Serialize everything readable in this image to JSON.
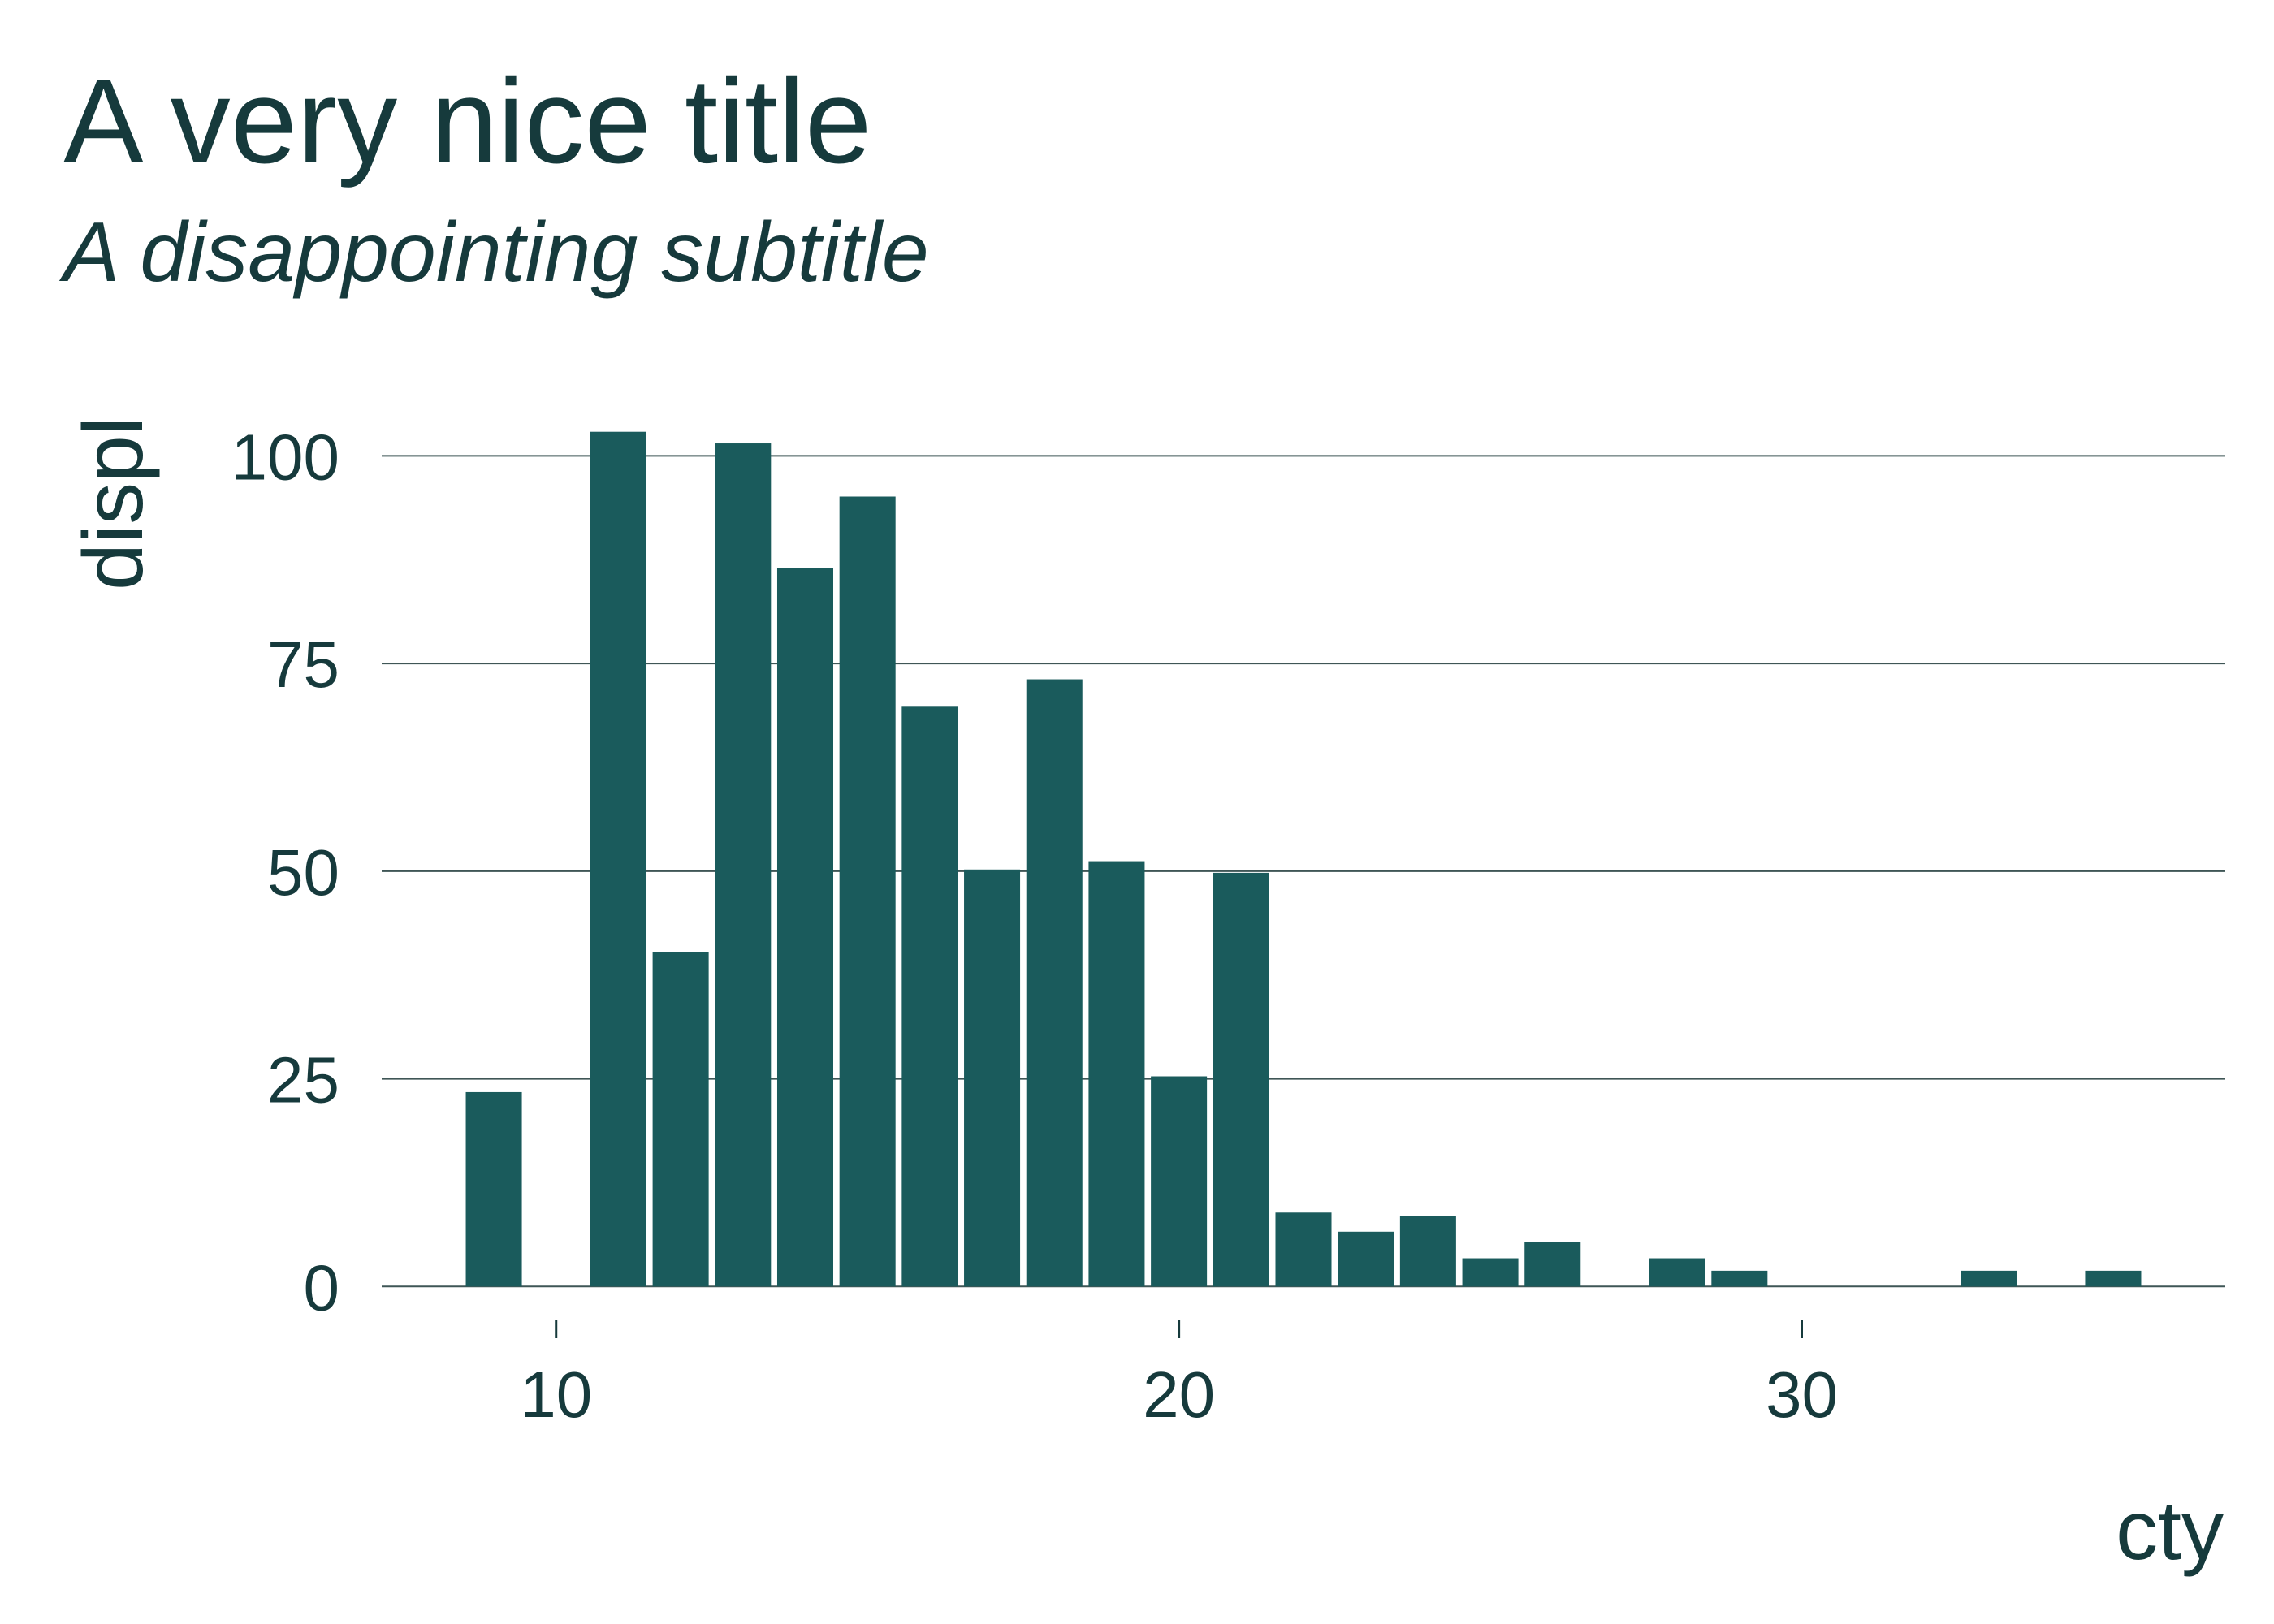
{
  "colors": {
    "bar": "#1a5b5c",
    "text": "#163a3c",
    "grid": "#3f5656",
    "background": "#ffffff"
  },
  "chart_data": {
    "type": "bar",
    "title": "A very nice title",
    "subtitle": "A disappointing subtitle",
    "xlabel": "cty",
    "ylabel": "displ",
    "x": [
      9,
      11,
      12,
      13,
      14,
      15,
      16,
      17,
      18,
      19,
      20,
      21,
      22,
      23,
      24,
      25,
      26,
      28,
      29,
      33,
      35
    ],
    "values": [
      23.4,
      102.9,
      40.3,
      101.5,
      86.5,
      95.1,
      69.8,
      50.2,
      73.1,
      51.2,
      25.3,
      49.8,
      8.9,
      6.6,
      8.5,
      3.4,
      5.4,
      3.4,
      1.9,
      1.9,
      1.9
    ],
    "bar_width": 0.9,
    "xlim": [
      7.2,
      36.8
    ],
    "ylim": [
      -3,
      106
    ],
    "x_ticks": [
      10,
      20,
      30
    ],
    "x_tick_labels": [
      "10",
      "20",
      "30"
    ],
    "y_ticks": [
      0,
      25,
      50,
      75,
      100
    ],
    "y_tick_labels": [
      "0",
      "25",
      "50",
      "75",
      "100"
    ],
    "grid": "horizontal"
  }
}
